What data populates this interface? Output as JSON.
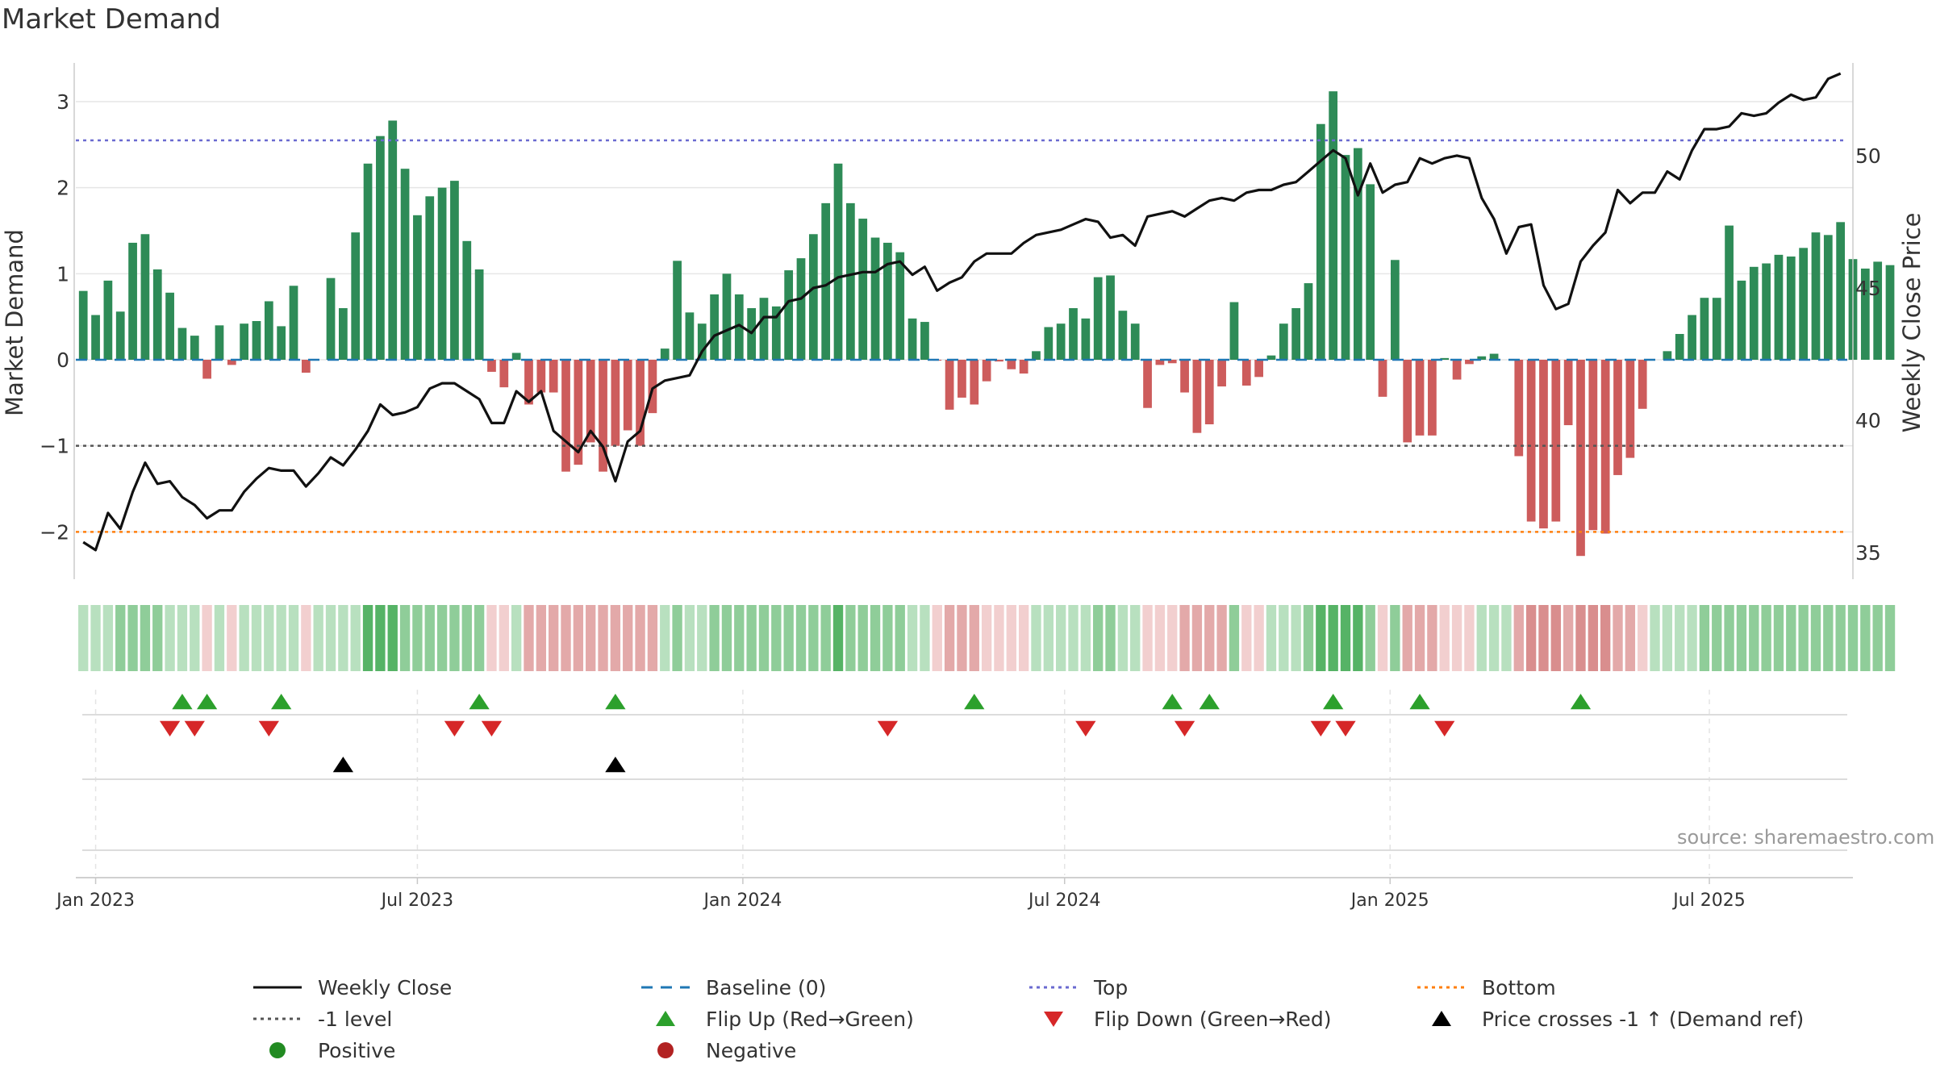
{
  "title": "Market Demand",
  "source": "source: sharemaestro.com",
  "colors": {
    "positive_bar": "#2e8b57",
    "negative_bar": "#cd5c5c",
    "price_line": "#111111",
    "baseline": "#1f77b4",
    "top_line": "#6a6ad0",
    "minus1_line": "#555555",
    "bottom_line": "#ff7f0e",
    "flip_up": "#2ca02c",
    "flip_down": "#d62728",
    "cross": "#000000",
    "positive_dot": "#228b22",
    "negative_dot": "#b22222",
    "grid": "#e6e6e6"
  },
  "legend": [
    {
      "label": "Weekly Close",
      "symbol": "line-solid",
      "color": "#111111"
    },
    {
      "label": "Baseline (0)",
      "symbol": "line-dashed",
      "color": "#1f77b4"
    },
    {
      "label": "Top",
      "symbol": "line-dotted",
      "color": "#6a6ad0"
    },
    {
      "label": "Bottom",
      "symbol": "line-dotted",
      "color": "#ff7f0e"
    },
    {
      "label": "-1 level",
      "symbol": "line-dotted",
      "color": "#555555"
    },
    {
      "label": "Flip Up (Red→Green)",
      "symbol": "triangle-up",
      "color": "#2ca02c"
    },
    {
      "label": "Flip Down (Green→Red)",
      "symbol": "triangle-down",
      "color": "#d62728"
    },
    {
      "label": "Price crosses -1 ↑ (Demand ref)",
      "symbol": "triangle-up",
      "color": "#000000"
    },
    {
      "label": "Positive",
      "symbol": "circle",
      "color": "#228b22"
    },
    {
      "label": "Negative",
      "symbol": "circle",
      "color": "#b22222"
    }
  ],
  "chart_data": {
    "type": "bar",
    "ylabel": "Market Demand",
    "y2label": "Weekly Close Price",
    "ylim": [
      -2.55,
      3.45
    ],
    "y2lim": [
      34,
      53.5
    ],
    "yticks": [
      3,
      2,
      1,
      0,
      -1,
      -2
    ],
    "yticklabels": [
      "3",
      "2",
      "1",
      "0",
      "−1",
      "−2"
    ],
    "y2ticks": [
      50,
      45,
      40,
      35
    ],
    "y2ticklabels": [
      "50",
      "45",
      "40",
      "35"
    ],
    "xticklabels": [
      "Jan 2023",
      "Jul 2023",
      "Jan 2024",
      "Jul 2024",
      "Jan 2025",
      "Jul 2025"
    ],
    "xtick_weeks": [
      0,
      26,
      52.3,
      78.3,
      104.6,
      130.4
    ],
    "week_range": [
      -1.6,
      142
    ],
    "reference_lines": {
      "baseline": 0,
      "top": 2.55,
      "minus1": -1,
      "bottom": -2
    },
    "grid": true,
    "legend_position": "bottom",
    "series": [
      {
        "name": "Market Demand",
        "kind": "bar",
        "start_week": -1,
        "values": [
          0.8,
          0.52,
          0.92,
          0.56,
          1.36,
          1.46,
          1.05,
          0.78,
          0.37,
          0.28,
          -0.22,
          0.4,
          -0.06,
          0.42,
          0.45,
          0.68,
          0.39,
          0.86,
          -0.15,
          0,
          0.95,
          0.6,
          1.48,
          2.28,
          2.6,
          2.78,
          2.22,
          1.68,
          1.9,
          2.0,
          2.08,
          1.38,
          1.05,
          -0.14,
          -0.32,
          0.08,
          -0.52,
          -0.38,
          -0.38,
          -1.3,
          -1.22,
          -0.96,
          -1.3,
          -1.0,
          -0.82,
          -1.0,
          -0.62,
          0.13,
          1.15,
          0.55,
          0.42,
          0.76,
          1.0,
          0.76,
          0.6,
          0.72,
          0.62,
          1.04,
          1.18,
          1.46,
          1.82,
          2.28,
          1.82,
          1.64,
          1.42,
          1.36,
          1.25,
          0.48,
          0.44,
          -0.01,
          -0.58,
          -0.44,
          -0.52,
          -0.25,
          -0.02,
          -0.11,
          -0.16,
          0.1,
          0.38,
          0.42,
          0.6,
          0.48,
          0.96,
          0.98,
          0.57,
          0.42,
          -0.56,
          -0.06,
          -0.04,
          -0.38,
          -0.85,
          -0.75,
          -0.31,
          0.67,
          -0.3,
          -0.2,
          0.05,
          0.42,
          0.6,
          0.89,
          2.74,
          3.12,
          2.38,
          2.46,
          2.04,
          -0.43,
          1.16,
          -0.96,
          -0.88,
          -0.88,
          0.02,
          -0.23,
          -0.05,
          0.04,
          0.07,
          0,
          -1.12,
          -1.88,
          -1.96,
          -1.88,
          -0.76,
          -2.28,
          -1.98,
          -2.02,
          -1.34,
          -1.14,
          -0.57,
          0,
          0.1,
          0.3,
          0.52,
          0.72,
          0.72,
          1.56,
          0.92,
          1.08,
          1.12,
          1.22,
          1.2,
          1.3,
          1.48,
          1.45,
          1.6,
          1.17,
          1.06,
          1.14,
          1.1
        ]
      },
      {
        "name": "Weekly Close",
        "kind": "line",
        "axis": "right",
        "start_week": -1,
        "values": [
          35.4,
          35.1,
          36.5,
          35.9,
          37.3,
          38.4,
          37.6,
          37.7,
          37.1,
          36.8,
          36.3,
          36.6,
          36.6,
          37.3,
          37.8,
          38.2,
          38.1,
          38.1,
          37.5,
          38.0,
          38.6,
          38.3,
          38.9,
          39.6,
          40.6,
          40.2,
          40.3,
          40.5,
          41.2,
          41.4,
          41.4,
          41.1,
          40.8,
          39.9,
          39.9,
          41.1,
          40.7,
          41.1,
          39.6,
          39.2,
          38.8,
          39.6,
          39.0,
          37.7,
          39.2,
          39.6,
          41.2,
          41.5,
          41.6,
          41.7,
          42.6,
          43.2,
          43.4,
          43.6,
          43.3,
          43.9,
          43.9,
          44.5,
          44.6,
          45.0,
          45.1,
          45.4,
          45.5,
          45.6,
          45.6,
          45.9,
          46.0,
          45.5,
          45.8,
          44.9,
          45.2,
          45.4,
          46.0,
          46.3,
          46.3,
          46.3,
          46.7,
          47.0,
          47.1,
          47.2,
          47.4,
          47.6,
          47.5,
          46.9,
          47.0,
          46.6,
          47.7,
          47.8,
          47.9,
          47.7,
          48.0,
          48.3,
          48.4,
          48.3,
          48.6,
          48.7,
          48.7,
          48.9,
          49.0,
          49.4,
          49.8,
          50.2,
          49.9,
          48.5,
          49.7,
          48.6,
          48.9,
          49.0,
          49.9,
          49.7,
          49.9,
          50.0,
          49.9,
          48.4,
          47.6,
          46.3,
          47.3,
          47.4,
          45.1,
          44.2,
          44.4,
          46.0,
          46.6,
          47.1,
          48.7,
          48.2,
          48.6,
          48.6,
          49.4,
          49.1,
          50.2,
          51.0,
          51.0,
          51.1,
          51.6,
          51.5,
          51.6,
          52.0,
          52.3,
          52.1,
          52.2,
          52.9,
          53.1
        ]
      }
    ],
    "band_cells": [
      "pl",
      "pl",
      "pl",
      "pm",
      "pm",
      "pm",
      "pm",
      "pl",
      "pl",
      "pl",
      "nl",
      "pl",
      "nl",
      "pl",
      "pl",
      "pl",
      "pl",
      "pl",
      "nl",
      "pl",
      "pl",
      "pl",
      "pl",
      "pd",
      "pd",
      "pd",
      "pm",
      "pm",
      "pm",
      "pm",
      "pm",
      "pm",
      "pm",
      "nl",
      "nl",
      "pl",
      "nm",
      "nm",
      "nm",
      "nm",
      "nm",
      "nm",
      "nm",
      "nm",
      "nm",
      "nm",
      "nm",
      "pl",
      "pm",
      "pl",
      "pl",
      "pm",
      "pm",
      "pm",
      "pm",
      "pm",
      "pm",
      "pm",
      "pm",
      "pm",
      "pm",
      "pd",
      "pm",
      "pm",
      "pm",
      "pm",
      "pm",
      "pl",
      "pl",
      "nl",
      "nm",
      "nm",
      "nm",
      "nl",
      "nl",
      "nl",
      "nl",
      "pl",
      "pl",
      "pl",
      "pl",
      "pl",
      "pm",
      "pm",
      "pl",
      "pl",
      "nl",
      "nl",
      "nl",
      "nm",
      "nm",
      "nm",
      "nm",
      "pm",
      "nl",
      "nl",
      "pl",
      "pl",
      "pl",
      "pm",
      "pd",
      "pd",
      "pd",
      "pd",
      "pm",
      "nl",
      "pm",
      "nm",
      "nm",
      "nm",
      "nl",
      "nl",
      "nl",
      "pl",
      "pl",
      "pl",
      "nm",
      "nd",
      "nd",
      "nd",
      "nm",
      "nd",
      "nd",
      "nd",
      "nm",
      "nm",
      "nl",
      "pl",
      "pl",
      "pl",
      "pl",
      "pm",
      "pm",
      "pm",
      "pm",
      "pm",
      "pm",
      "pm",
      "pm",
      "pm",
      "pm",
      "pm",
      "pm",
      "pm",
      "pm",
      "pm",
      "pm"
    ],
    "flip_up_weeks": [
      7,
      9,
      15,
      31,
      42,
      71,
      87,
      90,
      100,
      107,
      120
    ],
    "flip_down_weeks": [
      6,
      8,
      14,
      29,
      32,
      64,
      80,
      88,
      99,
      101,
      109
    ],
    "cross_weeks": [
      20,
      42
    ]
  }
}
